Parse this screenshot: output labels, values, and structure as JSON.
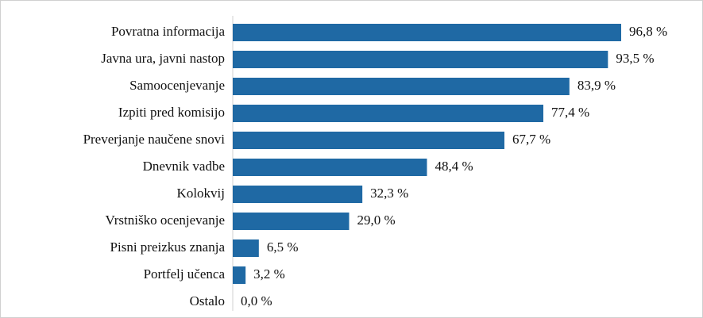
{
  "chart_data": {
    "type": "bar",
    "orientation": "horizontal",
    "categories": [
      "Povratna informacija",
      "Javna ura, javni nastop",
      "Samoocenjevanje",
      "Izpiti pred komisijo",
      "Preverjanje naučene snovi",
      "Dnevnik vadbe",
      "Kolokvij",
      "Vrstniško ocenjevanje",
      "Pisni preizkus znanja",
      "Portfelj učenca",
      "Ostalo"
    ],
    "values": [
      96.8,
      93.5,
      83.9,
      77.4,
      67.7,
      48.4,
      32.3,
      29.0,
      6.5,
      3.2,
      0.0
    ],
    "value_labels": [
      "96,8 %",
      "93,5 %",
      "83,9 %",
      "77,4 %",
      "67,7 %",
      "48,4 %",
      "32,3 %",
      "29,0 %",
      "6,5 %",
      "3,2 %",
      "0,0 %"
    ],
    "color": "#1f69a4"
  }
}
